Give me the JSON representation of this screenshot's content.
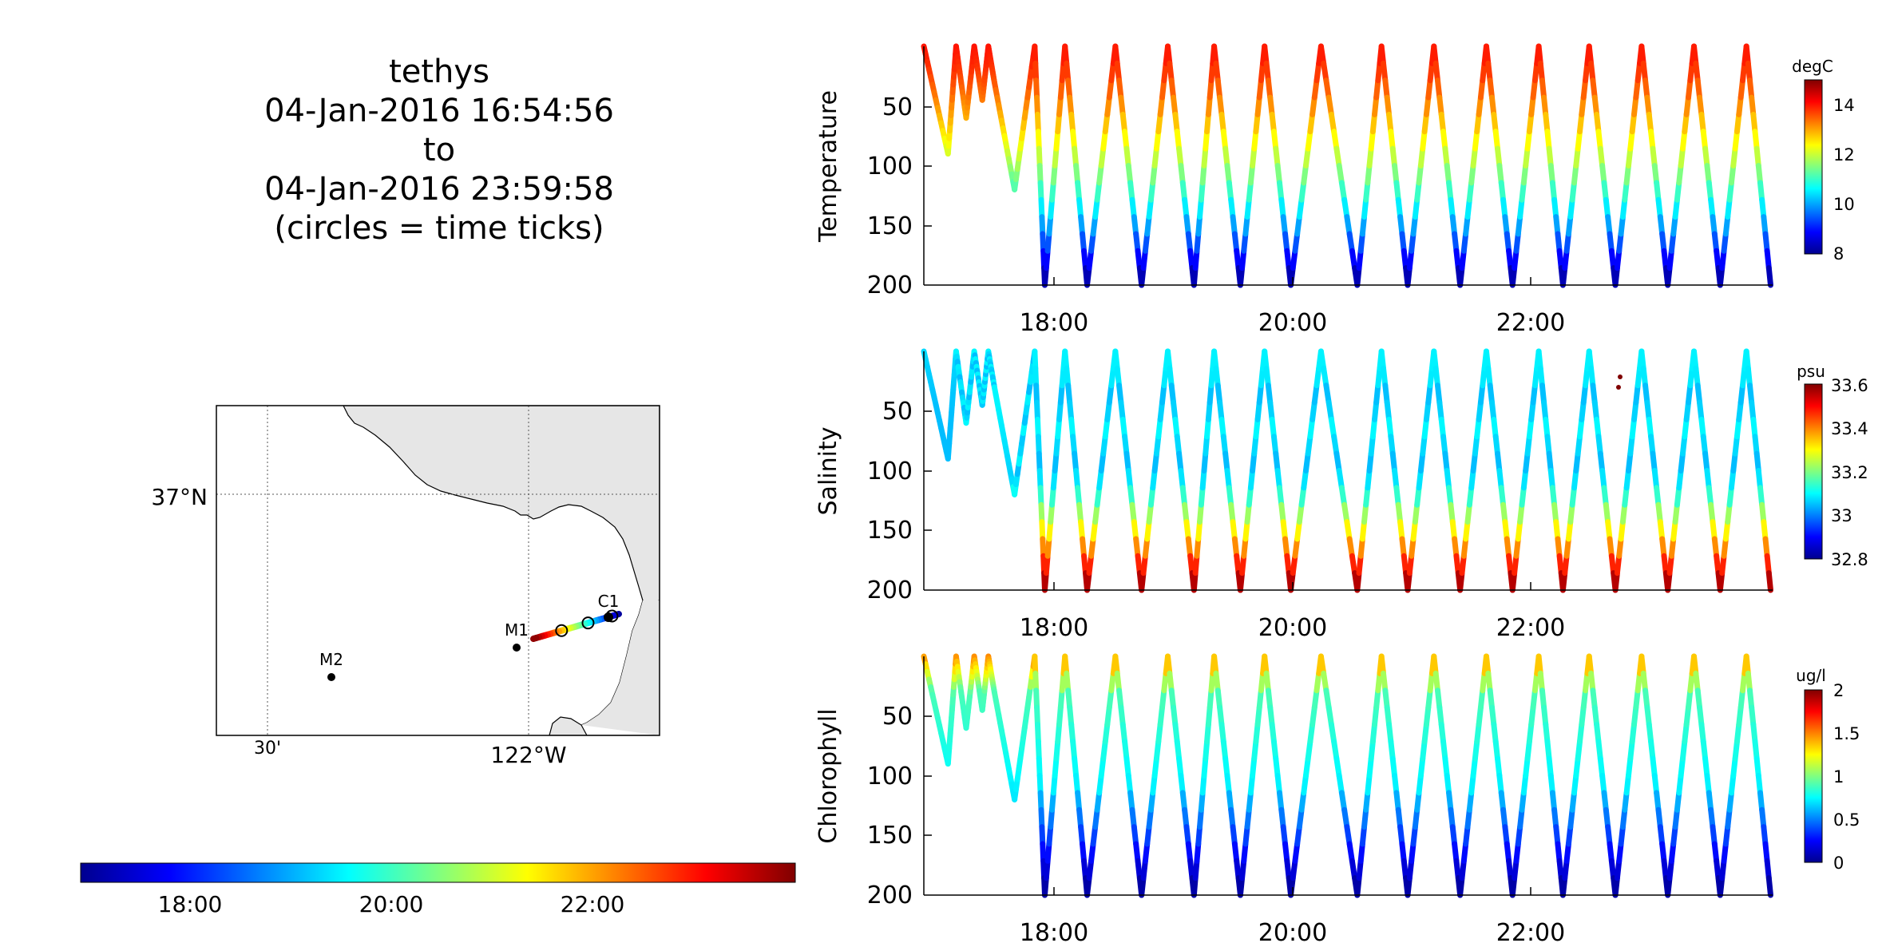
{
  "title_block": {
    "vehicle": "tethys",
    "start": "04-Jan-2016 16:54:56",
    "to": "to",
    "end": "04-Jan-2016 23:59:58",
    "note": "(circles = time ticks)"
  },
  "colormap": [
    "#00008f",
    "#0000ff",
    "#0080ff",
    "#00ffff",
    "#80ff80",
    "#ffff00",
    "#ff8000",
    "#ff0000",
    "#800000"
  ],
  "chart_data": [
    {
      "type": "map",
      "lat_tick": "37°N",
      "lon_ticks": [
        "30'",
        "122°W"
      ],
      "grid": true,
      "stations": [
        {
          "name": "C1",
          "lon": -121.84,
          "lat": 36.8
        },
        {
          "name": "M1",
          "lon": -122.02,
          "lat": 36.75
        },
        {
          "name": "M2",
          "lon": -122.37,
          "lat": 36.7
        }
      ],
      "track": {
        "start": [
          -121.82,
          36.805
        ],
        "end": [
          -121.99,
          36.76
        ],
        "circles": [
          0.08,
          0.36,
          0.67
        ]
      }
    },
    {
      "type": "colorbar",
      "orientation": "horizontal",
      "range": [
        "16:54:56",
        "23:59:58"
      ],
      "tick_labels": [
        "18:00",
        "20:00",
        "22:00"
      ]
    },
    {
      "type": "scatter",
      "ylabel": "Temperature",
      "unit": "degC",
      "clim": [
        8,
        15
      ],
      "colorbar_ticks": [
        "8",
        "10",
        "12",
        "14"
      ],
      "x_ticks": [
        "18:00",
        "20:00",
        "22:00"
      ],
      "y_ticks": [
        "50",
        "100",
        "150",
        "200"
      ],
      "ylim": [
        0,
        200
      ],
      "depth_profile_x": [
        "16:55",
        "17:07",
        "17:11",
        "17:16",
        "17:20",
        "17:24",
        "17:27",
        "17:30",
        "17:40",
        "17:50",
        "17:55",
        "18:05",
        "18:16",
        "18:30",
        "18:43",
        "18:56",
        "19:09",
        "19:19",
        "19:32",
        "19:44",
        "19:57",
        "20:12",
        "20:30",
        "20:42",
        "20:55",
        "21:08",
        "21:21",
        "21:34",
        "21:47",
        "22:00",
        "22:12",
        "22:25",
        "22:38",
        "22:51",
        "23:04",
        "23:17",
        "23:30",
        "23:43",
        "23:55"
      ],
      "depth_profile_y": [
        0,
        90,
        0,
        60,
        0,
        45,
        0,
        30,
        120,
        0,
        200,
        0,
        200,
        0,
        200,
        0,
        200,
        0,
        200,
        0,
        200,
        0,
        200,
        0,
        200,
        0,
        200,
        0,
        200,
        0,
        200,
        0,
        200,
        0,
        200,
        0,
        200,
        0,
        200
      ],
      "note": "colored by temperature: ~14 degC near surface, ~8 degC at 200 m"
    },
    {
      "type": "scatter",
      "ylabel": "Salinity",
      "unit": "psu",
      "clim": [
        32.8,
        33.6
      ],
      "colorbar_ticks": [
        "32.8",
        "33",
        "33.2",
        "33.4",
        "33.6"
      ],
      "x_ticks": [
        "18:00",
        "20:00",
        "22:00"
      ],
      "y_ticks": [
        "50",
        "100",
        "150",
        "200"
      ],
      "ylim": [
        0,
        200
      ],
      "note": "~33.05 psu near surface, ~33.6 psu at 200 m"
    },
    {
      "type": "scatter",
      "ylabel": "Chlorophyll",
      "unit": "ug/l",
      "clim": [
        0,
        2
      ],
      "colorbar_ticks": [
        "0",
        "0.5",
        "1",
        "1.5",
        "2"
      ],
      "x_ticks": [
        "18:00",
        "20:00",
        "22:00"
      ],
      "y_ticks": [
        "50",
        "100",
        "150",
        "200"
      ],
      "ylim": [
        0,
        200
      ],
      "note": "~1.5 ug/l near surface, ~0 ug/l at 200 m"
    }
  ]
}
